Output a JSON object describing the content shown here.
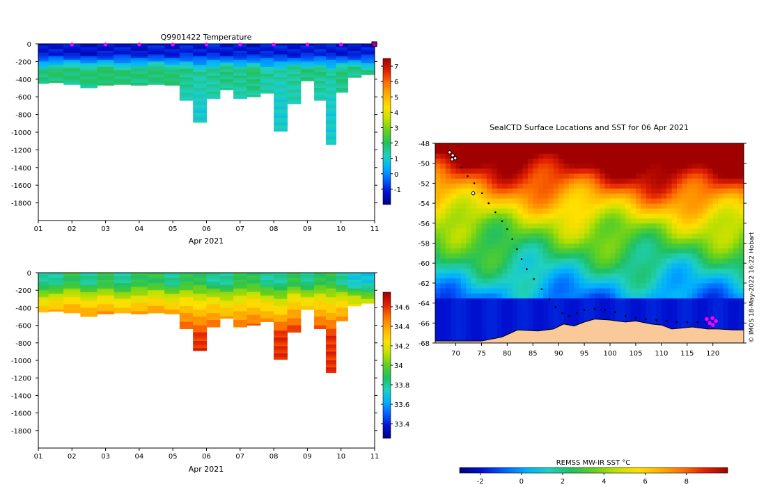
{
  "figure": {
    "credit": "© IMOS 18-May-2022 16:22 Hobart"
  },
  "chart_data": [
    {
      "type": "heatmap",
      "name": "temperature-section",
      "title": "Q9901422  Temperature",
      "xlabel": "Apr 2021",
      "x_tick_labels": [
        "01",
        "02",
        "03",
        "04",
        "05",
        "06",
        "07",
        "08",
        "09",
        "10",
        "11"
      ],
      "x_range": [
        1,
        11
      ],
      "y_range": [
        -2000,
        0
      ],
      "y_ticks": [
        0,
        -200,
        -400,
        -600,
        -800,
        -1000,
        -1200,
        -1400,
        -1600,
        -1800
      ],
      "profile_days": [
        2,
        3,
        4,
        5,
        6,
        7,
        8,
        9,
        10
      ],
      "colorbar": {
        "range": [
          -2,
          7.5
        ],
        "ticks": [
          -1,
          0,
          1,
          2,
          3,
          4,
          5,
          6,
          7
        ],
        "colors": [
          "#00007f",
          "#0010d0",
          "#0060ff",
          "#00b0ff",
          "#20d0c0",
          "#20c060",
          "#60d020",
          "#c0e000",
          "#ffe000",
          "#ffb000",
          "#ff7000",
          "#e02000",
          "#a00000"
        ]
      },
      "profiles": [
        {
          "day": 1.1,
          "surface": -1.2,
          "mid": 1.8,
          "deep": 1.4,
          "bottom": -450
        },
        {
          "day": 1.5,
          "surface": -1.1,
          "mid": 1.9,
          "deep": 1.5,
          "bottom": -440
        },
        {
          "day": 2.0,
          "surface": -1.2,
          "mid": 1.8,
          "deep": 1.5,
          "bottom": -460
        },
        {
          "day": 2.5,
          "surface": -1.3,
          "mid": 1.9,
          "deep": 1.4,
          "bottom": -500
        },
        {
          "day": 3.0,
          "surface": -1.2,
          "mid": 2.0,
          "deep": 1.5,
          "bottom": -470
        },
        {
          "day": 3.5,
          "surface": -1.1,
          "mid": 1.9,
          "deep": 1.5,
          "bottom": -460
        },
        {
          "day": 4.0,
          "surface": -1.2,
          "mid": 1.8,
          "deep": 1.5,
          "bottom": -470
        },
        {
          "day": 4.5,
          "surface": -1.1,
          "mid": 1.9,
          "deep": 1.4,
          "bottom": -460
        },
        {
          "day": 5.0,
          "surface": -1.2,
          "mid": 1.9,
          "deep": 1.5,
          "bottom": -470
        },
        {
          "day": 5.4,
          "surface": -1.0,
          "mid": 1.7,
          "deep": 1.2,
          "bottom": -640
        },
        {
          "day": 5.8,
          "surface": -1.1,
          "mid": 1.5,
          "deep": 1.0,
          "bottom": -890
        },
        {
          "day": 6.2,
          "surface": -1.0,
          "mid": 1.6,
          "deep": 1.2,
          "bottom": -620
        },
        {
          "day": 6.6,
          "surface": -1.2,
          "mid": 1.8,
          "deep": 1.3,
          "bottom": -520
        },
        {
          "day": 7.0,
          "surface": -1.1,
          "mid": 1.7,
          "deep": 1.2,
          "bottom": -620
        },
        {
          "day": 7.4,
          "surface": -1.2,
          "mid": 1.9,
          "deep": 1.4,
          "bottom": -600
        },
        {
          "day": 7.8,
          "surface": -1.0,
          "mid": 1.5,
          "deep": 1.1,
          "bottom": -560
        },
        {
          "day": 8.2,
          "surface": -1.1,
          "mid": 1.4,
          "deep": 1.0,
          "bottom": -990
        },
        {
          "day": 8.6,
          "surface": -1.2,
          "mid": 1.6,
          "deep": 1.2,
          "bottom": -680
        },
        {
          "day": 9.0,
          "surface": -1.1,
          "mid": 1.8,
          "deep": 1.3,
          "bottom": -420
        },
        {
          "day": 9.4,
          "surface": -1.0,
          "mid": 1.7,
          "deep": 1.2,
          "bottom": -640
        },
        {
          "day": 9.7,
          "surface": -1.1,
          "mid": 1.5,
          "deep": 1.0,
          "bottom": -1140
        },
        {
          "day": 10.0,
          "surface": -1.2,
          "mid": 1.8,
          "deep": 1.4,
          "bottom": -550
        },
        {
          "day": 10.4,
          "surface": -1.2,
          "mid": 1.7,
          "deep": 1.3,
          "bottom": -380
        },
        {
          "day": 10.8,
          "surface": -1.1,
          "mid": 1.6,
          "deep": 1.3,
          "bottom": -350
        }
      ]
    },
    {
      "type": "heatmap",
      "name": "salinity-section",
      "title": "",
      "xlabel": "Apr 2021",
      "x_tick_labels": [
        "01",
        "02",
        "03",
        "04",
        "05",
        "06",
        "07",
        "08",
        "09",
        "10",
        "11"
      ],
      "x_range": [
        1,
        11
      ],
      "y_range": [
        -2000,
        0
      ],
      "y_ticks": [
        0,
        -200,
        -400,
        -600,
        -800,
        -1000,
        -1200,
        -1400,
        -1600,
        -1800
      ],
      "colorbar": {
        "range": [
          33.25,
          34.75
        ],
        "ticks": [
          33.4,
          33.6,
          33.8,
          34,
          34.2,
          34.4,
          34.6
        ],
        "tick_labels": [
          "33.4",
          "33.6",
          "33.8",
          "34",
          "34.2",
          "34.4",
          "34.6"
        ],
        "colors": [
          "#00007f",
          "#0010d0",
          "#0060ff",
          "#00b0ff",
          "#20d0c0",
          "#20c060",
          "#60d020",
          "#c0e000",
          "#ffe000",
          "#ffb000",
          "#ff7000",
          "#e02000",
          "#a00000"
        ]
      },
      "profiles": [
        {
          "day": 1.1,
          "surface": 33.8,
          "mid": 34.2,
          "deep": 34.7,
          "bottom": -450
        },
        {
          "day": 1.5,
          "surface": 33.8,
          "mid": 34.2,
          "deep": 34.7,
          "bottom": -440
        },
        {
          "day": 2.0,
          "surface": 33.9,
          "mid": 34.2,
          "deep": 34.7,
          "bottom": -460
        },
        {
          "day": 2.5,
          "surface": 33.8,
          "mid": 34.2,
          "deep": 34.7,
          "bottom": -500
        },
        {
          "day": 3.0,
          "surface": 33.9,
          "mid": 34.2,
          "deep": 34.7,
          "bottom": -470
        },
        {
          "day": 3.5,
          "surface": 33.8,
          "mid": 34.2,
          "deep": 34.7,
          "bottom": -460
        },
        {
          "day": 4.0,
          "surface": 33.9,
          "mid": 34.2,
          "deep": 34.7,
          "bottom": -470
        },
        {
          "day": 4.5,
          "surface": 33.9,
          "mid": 34.2,
          "deep": 34.7,
          "bottom": -460
        },
        {
          "day": 5.0,
          "surface": 33.8,
          "mid": 34.2,
          "deep": 34.7,
          "bottom": -470
        },
        {
          "day": 5.4,
          "surface": 33.9,
          "mid": 34.2,
          "deep": 34.6,
          "bottom": -640
        },
        {
          "day": 5.8,
          "surface": 33.9,
          "mid": 34.2,
          "deep": 34.6,
          "bottom": -890
        },
        {
          "day": 6.2,
          "surface": 33.8,
          "mid": 34.2,
          "deep": 34.6,
          "bottom": -620
        },
        {
          "day": 6.6,
          "surface": 33.8,
          "mid": 34.1,
          "deep": 34.6,
          "bottom": -520
        },
        {
          "day": 7.0,
          "surface": 33.9,
          "mid": 34.2,
          "deep": 34.6,
          "bottom": -620
        },
        {
          "day": 7.4,
          "surface": 33.9,
          "mid": 34.2,
          "deep": 34.6,
          "bottom": -600
        },
        {
          "day": 7.8,
          "surface": 33.8,
          "mid": 34.2,
          "deep": 34.6,
          "bottom": -560
        },
        {
          "day": 8.2,
          "surface": 33.8,
          "mid": 34.1,
          "deep": 34.6,
          "bottom": -990
        },
        {
          "day": 8.6,
          "surface": 33.9,
          "mid": 34.2,
          "deep": 34.6,
          "bottom": -680
        },
        {
          "day": 9.0,
          "surface": 33.8,
          "mid": 34.2,
          "deep": 34.6,
          "bottom": -420
        },
        {
          "day": 9.4,
          "surface": 33.9,
          "mid": 34.2,
          "deep": 34.6,
          "bottom": -640
        },
        {
          "day": 9.7,
          "surface": 33.9,
          "mid": 34.2,
          "deep": 34.6,
          "bottom": -1140
        },
        {
          "day": 10.0,
          "surface": 33.8,
          "mid": 34.2,
          "deep": 34.6,
          "bottom": -550
        },
        {
          "day": 10.4,
          "surface": 33.7,
          "mid": 34.1,
          "deep": 34.6,
          "bottom": -380
        },
        {
          "day": 10.8,
          "surface": 33.7,
          "mid": 34.1,
          "deep": 34.6,
          "bottom": -350
        }
      ]
    },
    {
      "type": "heatmap",
      "name": "sst-map",
      "title": "SealCTD Surface Locations and SST for 06 Apr 2021",
      "x_range": [
        66,
        126
      ],
      "y_range": [
        -68,
        -48
      ],
      "x_ticks": [
        70,
        75,
        80,
        85,
        90,
        95,
        100,
        105,
        110,
        115,
        120
      ],
      "y_ticks": [
        -48,
        -50,
        -52,
        -54,
        -56,
        -58,
        -60,
        -62,
        -64,
        -66,
        -68
      ],
      "colorbar": {
        "label": "REMSS MW-IR SST °C",
        "range": [
          -3,
          10
        ],
        "ticks": [
          -2,
          0,
          2,
          4,
          6,
          8
        ],
        "colors": [
          "#00007f",
          "#0010d0",
          "#0060ff",
          "#00b0ff",
          "#20d0c0",
          "#20c060",
          "#60d020",
          "#c0e000",
          "#ffe000",
          "#ffb000",
          "#ff7000",
          "#e02000",
          "#a00000"
        ]
      },
      "land_color": "#f9c99a",
      "track_color": "#000000",
      "recent_color": "#ff00ff",
      "coastline": [
        [
          66,
          -68
        ],
        [
          66,
          -67.8
        ],
        [
          75,
          -67.8
        ],
        [
          79,
          -67.4
        ],
        [
          82,
          -66.7
        ],
        [
          86,
          -66.8
        ],
        [
          89,
          -66.6
        ],
        [
          91,
          -66.1
        ],
        [
          93,
          -66.3
        ],
        [
          95,
          -65.9
        ],
        [
          97,
          -65.6
        ],
        [
          100,
          -65.7
        ],
        [
          103,
          -65.9
        ],
        [
          105,
          -65.8
        ],
        [
          107,
          -66.0
        ],
        [
          108,
          -66.1
        ],
        [
          110,
          -66.2
        ],
        [
          112,
          -66.6
        ],
        [
          114,
          -66.5
        ],
        [
          116,
          -66.4
        ],
        [
          119,
          -66.6
        ],
        [
          121,
          -66.6
        ],
        [
          124,
          -66.7
        ],
        [
          126,
          -66.7
        ],
        [
          126,
          -68
        ]
      ],
      "track": [
        [
          69.2,
          -49.2
        ],
        [
          69.8,
          -49.6
        ],
        [
          71.0,
          -50.4
        ],
        [
          72.3,
          -51.3
        ],
        [
          73.6,
          -52.0
        ],
        [
          75.1,
          -53.0
        ],
        [
          76.4,
          -54.0
        ],
        [
          77.7,
          -54.9
        ],
        [
          79.0,
          -55.8
        ],
        [
          80.0,
          -56.6
        ],
        [
          81.0,
          -57.6
        ],
        [
          81.9,
          -58.6
        ],
        [
          82.8,
          -59.6
        ],
        [
          83.8,
          -60.6
        ],
        [
          85.2,
          -61.6
        ],
        [
          86.7,
          -62.6
        ],
        [
          88.2,
          -63.6
        ],
        [
          89.4,
          -64.4
        ],
        [
          90.7,
          -65.0
        ],
        [
          92.0,
          -65.3
        ],
        [
          93.5,
          -65.0
        ],
        [
          95.0,
          -64.7
        ],
        [
          97.0,
          -64.6
        ],
        [
          99.0,
          -64.7
        ],
        [
          101.0,
          -64.9
        ],
        [
          103.0,
          -65.3
        ],
        [
          105.0,
          -65.5
        ],
        [
          107.0,
          -65.6
        ],
        [
          109.0,
          -65.7
        ],
        [
          111.0,
          -65.8
        ],
        [
          113.0,
          -65.9
        ],
        [
          115.0,
          -65.9
        ],
        [
          117.0,
          -65.9
        ],
        [
          119.0,
          -65.9
        ],
        [
          119.8,
          -66.0
        ]
      ],
      "recent_positions": [
        [
          118.8,
          -65.6
        ],
        [
          119.4,
          -66.0
        ],
        [
          120.0,
          -66.2
        ],
        [
          120.6,
          -65.8
        ],
        [
          119.9,
          -65.5
        ]
      ],
      "cluster_positions": [
        [
          68.8,
          -48.9
        ],
        [
          69.4,
          -49.2
        ],
        [
          69.9,
          -49.5
        ],
        [
          69.3,
          -49.6
        ],
        [
          73.4,
          -53.0
        ]
      ]
    }
  ]
}
